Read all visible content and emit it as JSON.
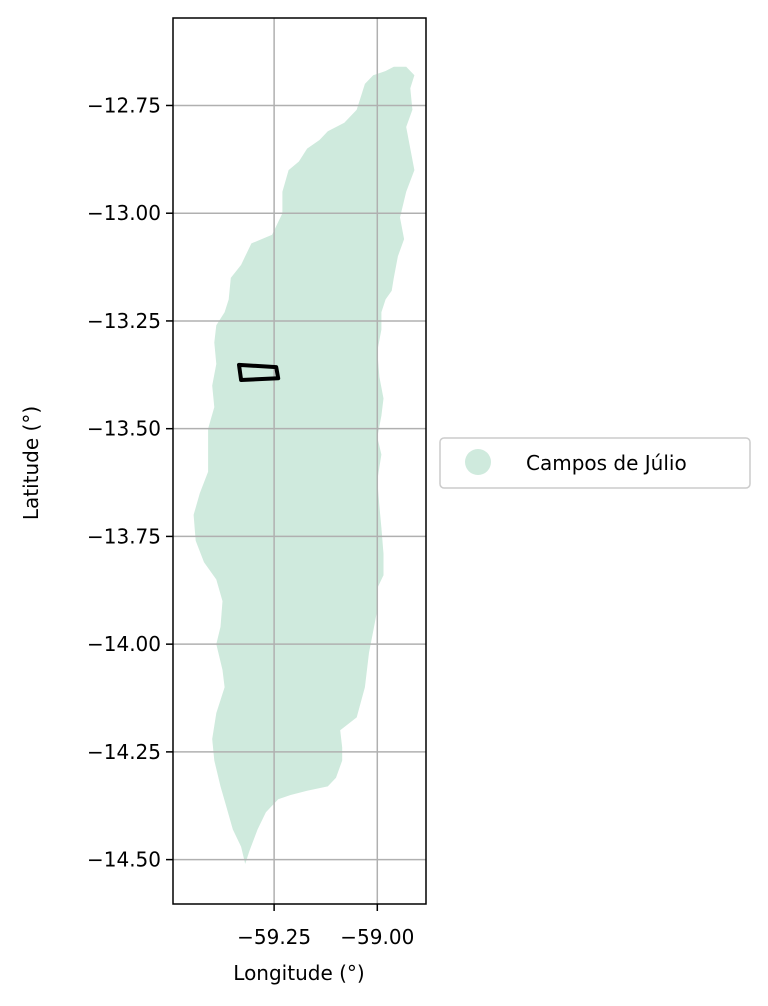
{
  "chart_data": {
    "type": "map",
    "xlabel": "Longitude (°)",
    "ylabel": "Latitude (°)",
    "xlim": [
      -59.495,
      -58.882
    ],
    "ylim": [
      -14.603,
      -12.547
    ],
    "x_ticks": [
      -59.25,
      -59.0
    ],
    "x_tick_labels": [
      "−59.25",
      "−59.00"
    ],
    "y_ticks": [
      -12.75,
      -13.0,
      -13.25,
      -13.5,
      -13.75,
      -14.0,
      -14.25,
      -14.5
    ],
    "y_tick_labels": [
      "−12.75",
      "−13.00",
      "−13.25",
      "−13.50",
      "−13.75",
      "−14.00",
      "−14.25",
      "−14.50"
    ],
    "grid": true,
    "legend": {
      "placement": "right",
      "entries": [
        {
          "label": "Campos de Júlio",
          "color": "#cfeadd"
        }
      ]
    },
    "region": {
      "name": "Campos de Júlio",
      "color": "#cfeadd",
      "outline_lonlat": [
        [
          -58.93,
          -12.66
        ],
        [
          -58.91,
          -12.68
        ],
        [
          -58.92,
          -12.71
        ],
        [
          -58.915,
          -12.76
        ],
        [
          -58.93,
          -12.8
        ],
        [
          -58.92,
          -12.85
        ],
        [
          -58.91,
          -12.9
        ],
        [
          -58.93,
          -12.95
        ],
        [
          -58.945,
          -13.01
        ],
        [
          -58.935,
          -13.06
        ],
        [
          -58.95,
          -13.1
        ],
        [
          -58.96,
          -13.15
        ],
        [
          -58.965,
          -13.18
        ],
        [
          -58.98,
          -13.2
        ],
        [
          -58.99,
          -13.23
        ],
        [
          -58.99,
          -13.27
        ],
        [
          -59.0,
          -13.32
        ],
        [
          -58.995,
          -13.38
        ],
        [
          -58.985,
          -13.43
        ],
        [
          -58.99,
          -13.47
        ],
        [
          -59.0,
          -13.52
        ],
        [
          -58.99,
          -13.56
        ],
        [
          -59.0,
          -13.62
        ],
        [
          -58.995,
          -13.68
        ],
        [
          -58.99,
          -13.73
        ],
        [
          -58.985,
          -13.79
        ],
        [
          -58.985,
          -13.84
        ],
        [
          -59.0,
          -13.87
        ],
        [
          -59.0,
          -13.92
        ],
        [
          -59.01,
          -13.97
        ],
        [
          -59.02,
          -14.02
        ],
        [
          -59.03,
          -14.1
        ],
        [
          -59.05,
          -14.17
        ],
        [
          -59.09,
          -14.2
        ],
        [
          -59.085,
          -14.24
        ],
        [
          -59.085,
          -14.27
        ],
        [
          -59.1,
          -14.31
        ],
        [
          -59.12,
          -14.33
        ],
        [
          -59.17,
          -14.34
        ],
        [
          -59.21,
          -14.35
        ],
        [
          -59.24,
          -14.36
        ],
        [
          -59.27,
          -14.39
        ],
        [
          -59.29,
          -14.43
        ],
        [
          -59.31,
          -14.48
        ],
        [
          -59.32,
          -14.51
        ],
        [
          -59.33,
          -14.47
        ],
        [
          -59.35,
          -14.43
        ],
        [
          -59.365,
          -14.38
        ],
        [
          -59.38,
          -14.33
        ],
        [
          -59.395,
          -14.27
        ],
        [
          -59.4,
          -14.22
        ],
        [
          -59.39,
          -14.16
        ],
        [
          -59.37,
          -14.1
        ],
        [
          -59.375,
          -14.06
        ],
        [
          -59.39,
          -14.0
        ],
        [
          -59.38,
          -13.96
        ],
        [
          -59.375,
          -13.9
        ],
        [
          -59.39,
          -13.85
        ],
        [
          -59.42,
          -13.81
        ],
        [
          -59.44,
          -13.76
        ],
        [
          -59.445,
          -13.7
        ],
        [
          -59.43,
          -13.65
        ],
        [
          -59.41,
          -13.6
        ],
        [
          -59.41,
          -13.55
        ],
        [
          -59.41,
          -13.5
        ],
        [
          -59.395,
          -13.45
        ],
        [
          -59.4,
          -13.4
        ],
        [
          -59.39,
          -13.35
        ],
        [
          -59.395,
          -13.3
        ],
        [
          -59.39,
          -13.26
        ],
        [
          -59.37,
          -13.23
        ],
        [
          -59.36,
          -13.2
        ],
        [
          -59.355,
          -13.15
        ],
        [
          -59.33,
          -13.12
        ],
        [
          -59.32,
          -13.1
        ],
        [
          -59.305,
          -13.07
        ],
        [
          -59.28,
          -13.06
        ],
        [
          -59.255,
          -13.05
        ],
        [
          -59.23,
          -13.0
        ],
        [
          -59.23,
          -12.95
        ],
        [
          -59.215,
          -12.9
        ],
        [
          -59.19,
          -12.88
        ],
        [
          -59.17,
          -12.85
        ],
        [
          -59.14,
          -12.83
        ],
        [
          -59.12,
          -12.81
        ],
        [
          -59.08,
          -12.79
        ],
        [
          -59.05,
          -12.76
        ],
        [
          -59.04,
          -12.73
        ],
        [
          -59.03,
          -12.7
        ],
        [
          -59.01,
          -12.68
        ],
        [
          -58.98,
          -12.67
        ],
        [
          -58.96,
          -12.66
        ]
      ]
    },
    "highlight": {
      "color": "#000000",
      "corners_lonlat": [
        [
          -59.335,
          -13.352
        ],
        [
          -59.245,
          -13.357
        ],
        [
          -59.24,
          -13.383
        ],
        [
          -59.33,
          -13.387
        ]
      ]
    }
  }
}
